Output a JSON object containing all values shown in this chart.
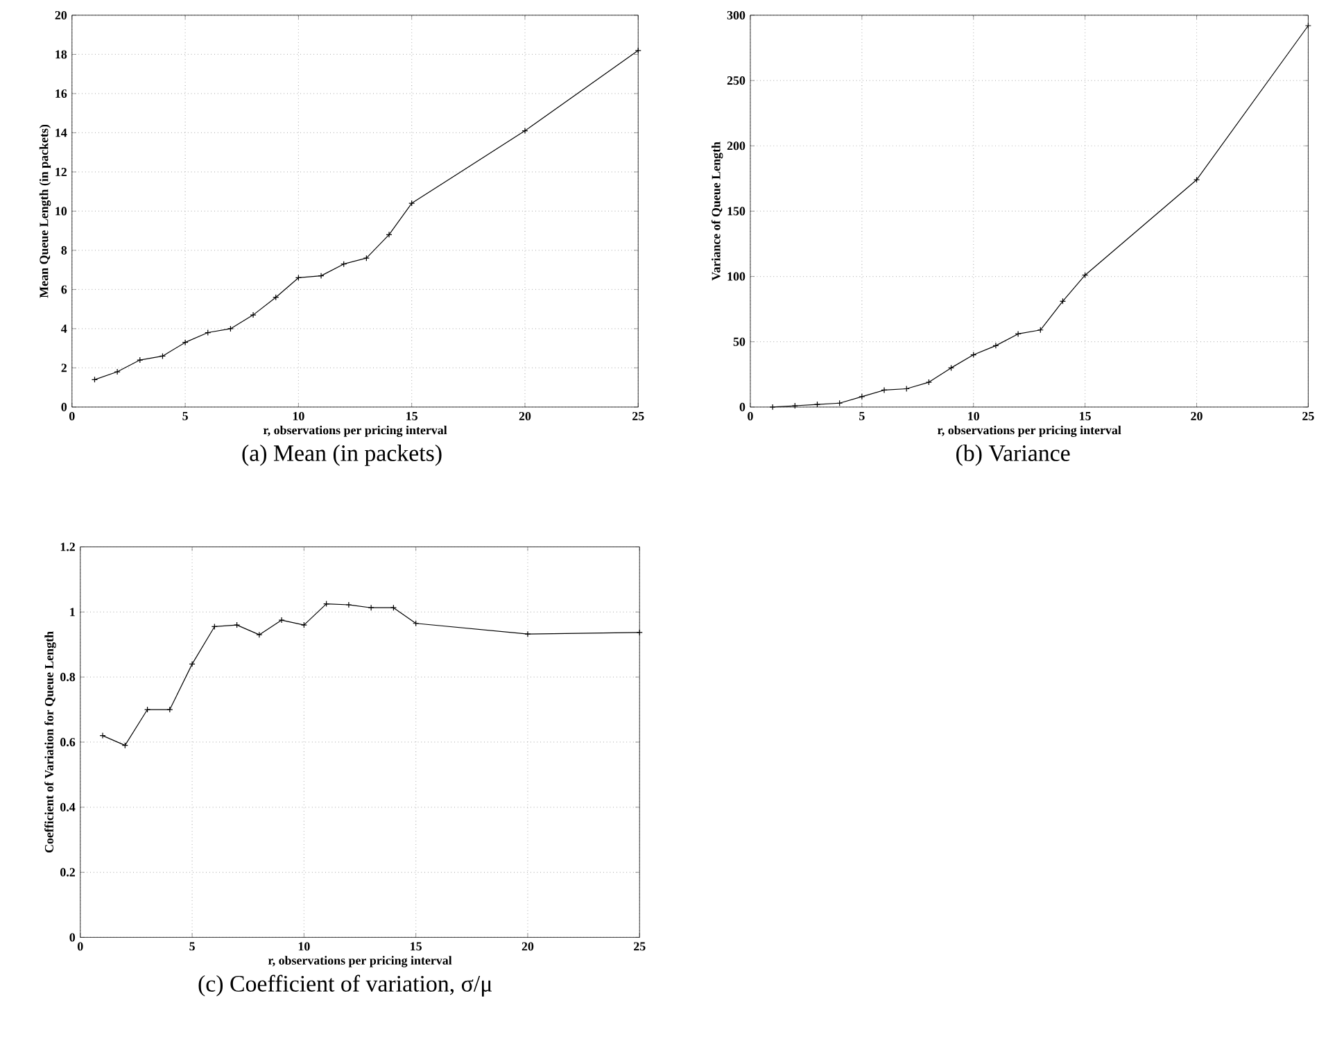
{
  "chart_data": [
    {
      "type": "line",
      "title": "(a) Mean (in packets)",
      "xlabel": "r, observations per pricing interval",
      "ylabel": "Mean Queue Length (in packets)",
      "x": [
        1,
        2,
        3,
        4,
        5,
        6,
        7,
        8,
        9,
        10,
        11,
        12,
        13,
        14,
        15,
        20,
        25
      ],
      "series": [
        {
          "color": "#000000",
          "values": [
            1.4,
            1.8,
            2.4,
            2.6,
            3.3,
            3.8,
            4.0,
            4.7,
            5.6,
            6.6,
            6.7,
            7.3,
            7.6,
            8.8,
            10.4,
            14.1,
            18.2
          ]
        }
      ],
      "xlim": [
        0,
        25
      ],
      "xticks": [
        0,
        5,
        10,
        15,
        20,
        25
      ],
      "ylim": [
        0,
        20
      ],
      "yticks": [
        0,
        2,
        4,
        6,
        8,
        10,
        12,
        14,
        16,
        18,
        20
      ],
      "grid": true,
      "marker": "cross"
    },
    {
      "type": "line",
      "title": "(b) Variance",
      "xlabel": "r, observations per pricing interval",
      "ylabel": "Variance of Queue Length",
      "x": [
        1,
        2,
        3,
        4,
        5,
        6,
        7,
        8,
        9,
        10,
        11,
        12,
        13,
        14,
        15,
        20,
        25
      ],
      "series": [
        {
          "color": "#000000",
          "values": [
            0,
            1,
            2,
            3,
            8,
            13,
            14,
            19,
            30,
            40,
            47,
            56,
            59,
            81,
            101,
            174,
            292
          ]
        }
      ],
      "xlim": [
        0,
        25
      ],
      "xticks": [
        0,
        5,
        10,
        15,
        20,
        25
      ],
      "ylim": [
        0,
        300
      ],
      "yticks": [
        0,
        50,
        100,
        150,
        200,
        250,
        300
      ],
      "grid": true,
      "marker": "cross"
    },
    {
      "type": "line",
      "title": "(c) Coefficient of variation, σ/μ",
      "xlabel": "r, observations per pricing interval",
      "ylabel": "Coefficient of Variation for Queue Length",
      "x": [
        1,
        2,
        3,
        4,
        5,
        6,
        7,
        8,
        9,
        10,
        11,
        12,
        13,
        14,
        15,
        20,
        25
      ],
      "series": [
        {
          "color": "#000000",
          "values": [
            0.62,
            0.59,
            0.7,
            0.7,
            0.84,
            0.955,
            0.96,
            0.93,
            0.975,
            0.96,
            1.025,
            1.022,
            1.013,
            1.013,
            0.965,
            0.932,
            0.937
          ]
        }
      ],
      "xlim": [
        0,
        25
      ],
      "xticks": [
        0,
        5,
        10,
        15,
        20,
        25
      ],
      "ylim": [
        0,
        1.2
      ],
      "yticks": [
        0,
        0.2,
        0.4,
        0.6,
        0.8,
        1,
        1.2
      ],
      "grid": true,
      "marker": "cross"
    }
  ]
}
